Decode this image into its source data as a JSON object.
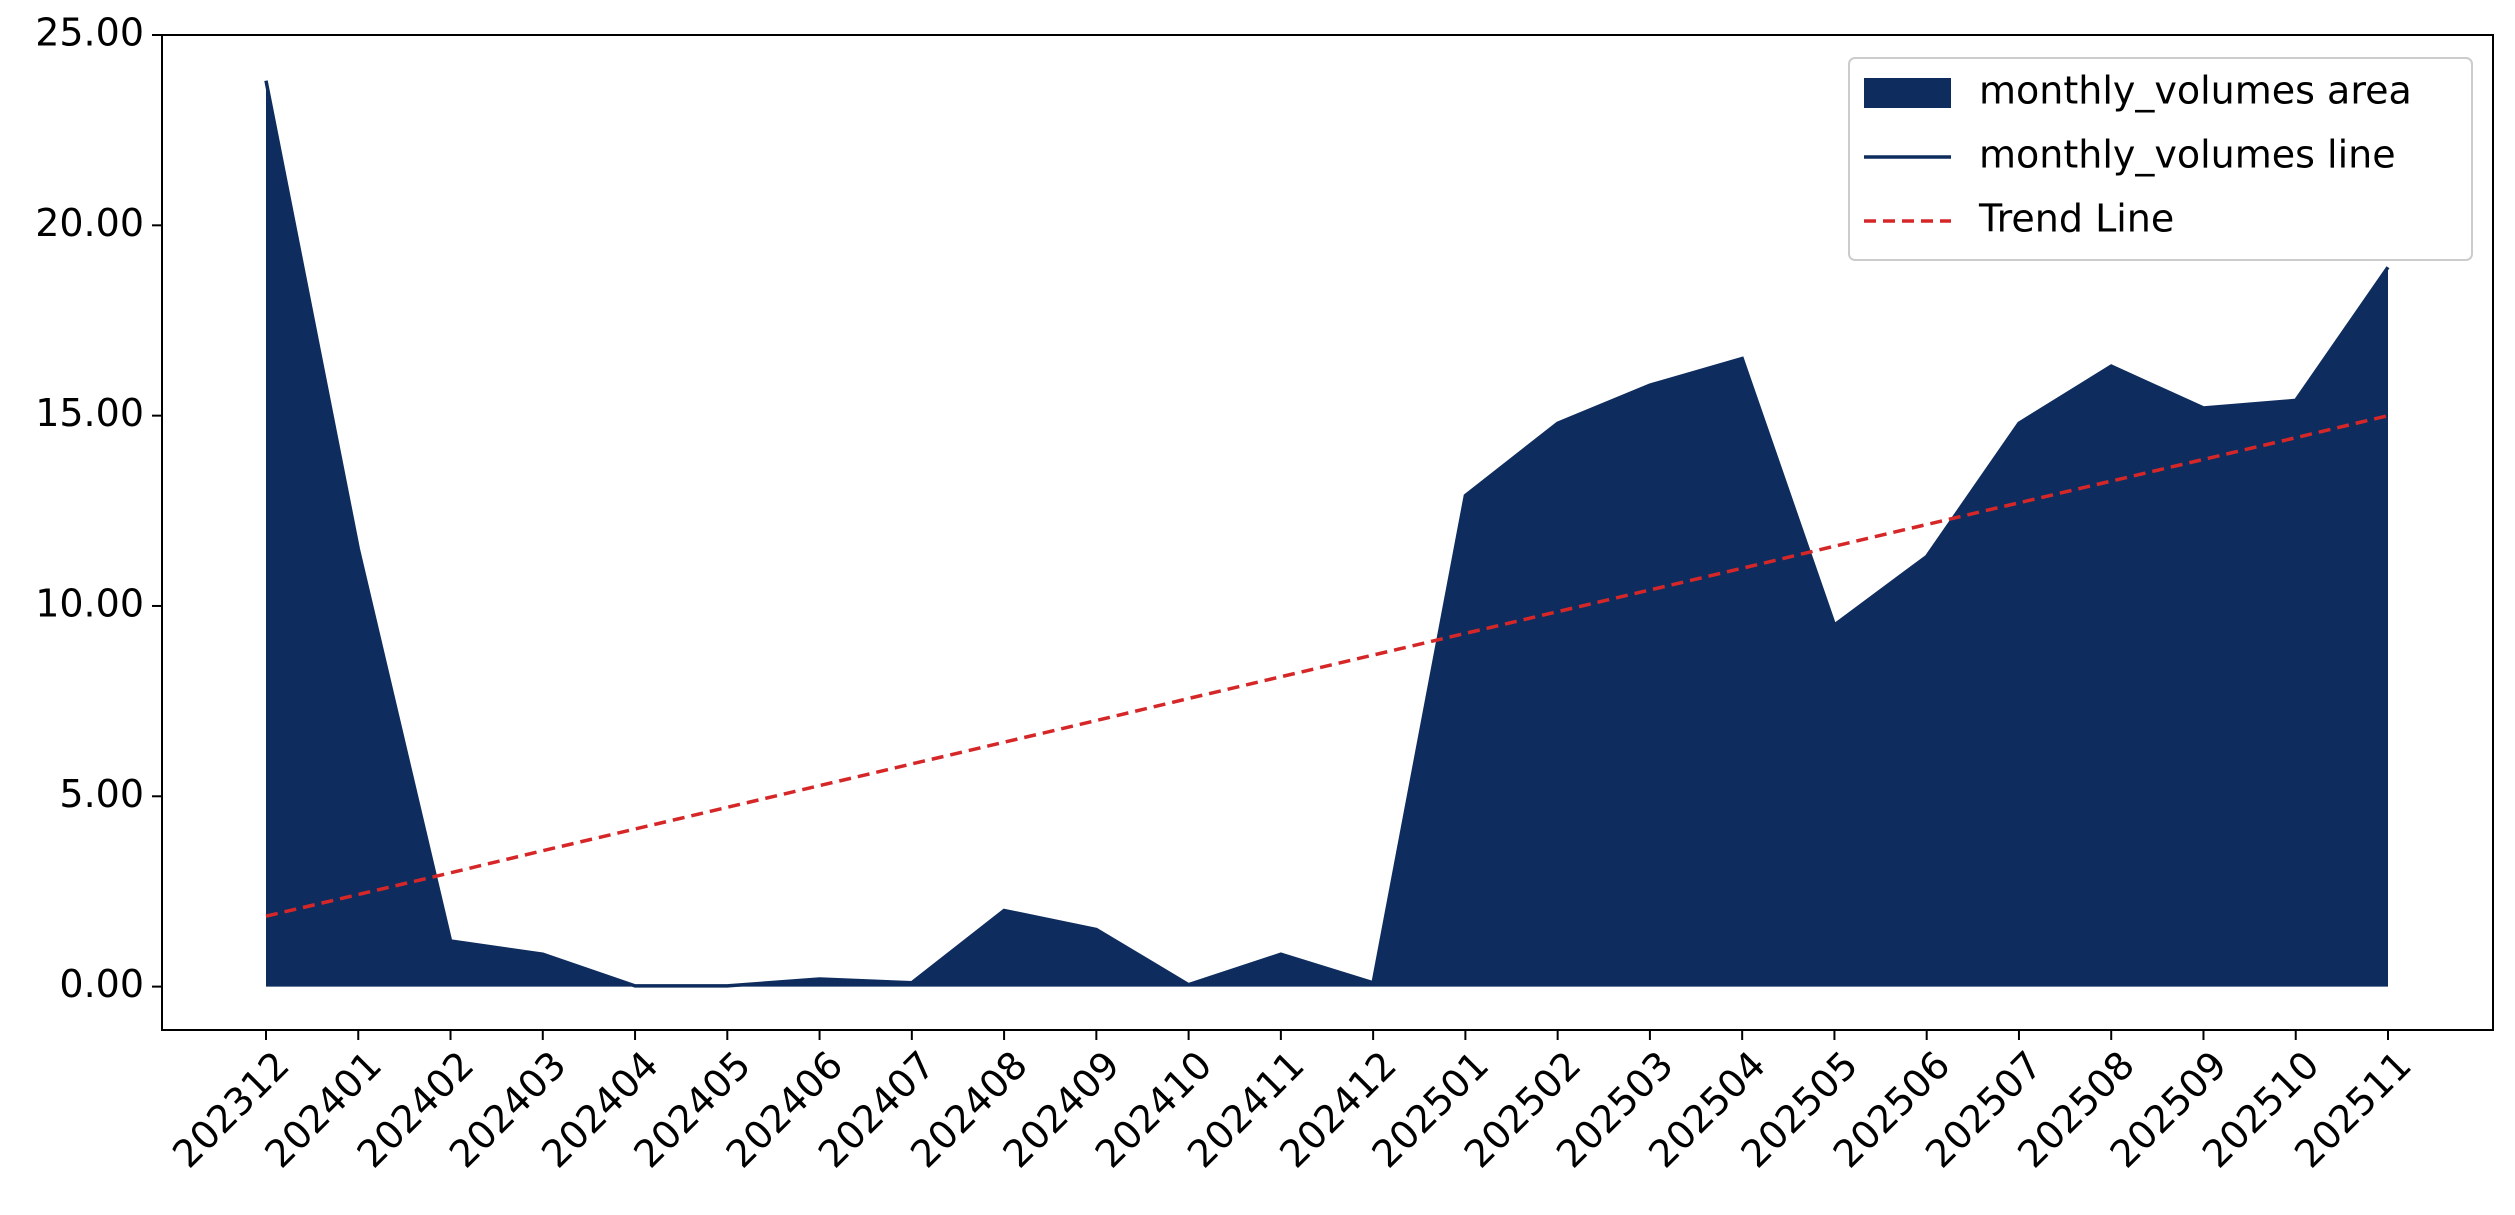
{
  "chart_data": {
    "type": "area",
    "categories": [
      "202312",
      "202401",
      "202402",
      "202403",
      "202404",
      "202405",
      "202406",
      "202407",
      "202408",
      "202409",
      "202410",
      "202411",
      "202412",
      "202501",
      "202502",
      "202503",
      "202504",
      "202505",
      "202506",
      "202507",
      "202508",
      "202509",
      "202510",
      "202511"
    ],
    "series": [
      {
        "name": "monthly_volumes area",
        "kind": "area",
        "color": "#0e2d5e",
        "values": [
          23.8,
          11.5,
          1.2,
          0.85,
          0.02,
          0.02,
          0.2,
          0.1,
          2.0,
          1.5,
          0.05,
          0.85,
          0.1,
          12.9,
          14.8,
          15.8,
          16.5,
          9.5,
          11.3,
          14.8,
          16.3,
          15.2,
          15.4,
          18.9
        ]
      },
      {
        "name": "monthly_volumes line",
        "kind": "line",
        "color": "#0e2d5e",
        "values": [
          23.8,
          11.5,
          1.2,
          0.85,
          0.02,
          0.02,
          0.2,
          0.1,
          2.0,
          1.5,
          0.05,
          0.85,
          0.1,
          12.9,
          14.8,
          15.8,
          16.5,
          9.5,
          11.3,
          14.8,
          16.3,
          15.2,
          15.4,
          18.9
        ]
      },
      {
        "name": "Trend Line",
        "kind": "dashed",
        "color": "#d62728",
        "values": [
          1.85,
          2.42,
          2.99,
          3.57,
          4.14,
          4.71,
          5.28,
          5.85,
          6.42,
          6.99,
          7.57,
          8.14,
          8.71,
          9.28,
          9.85,
          10.42,
          10.99,
          11.57,
          12.14,
          12.71,
          13.28,
          13.85,
          14.42,
          15.0
        ]
      }
    ],
    "ylim": [
      -1.14,
      25
    ],
    "yticks": [
      {
        "value": 0,
        "label": "0.00"
      },
      {
        "value": 5,
        "label": "5.00"
      },
      {
        "value": 10,
        "label": "10.00"
      },
      {
        "value": 15,
        "label": "15.00"
      },
      {
        "value": 20,
        "label": "20.00"
      },
      {
        "value": 25,
        "label": "25.00"
      }
    ],
    "legend": "upper right",
    "grid": false
  }
}
